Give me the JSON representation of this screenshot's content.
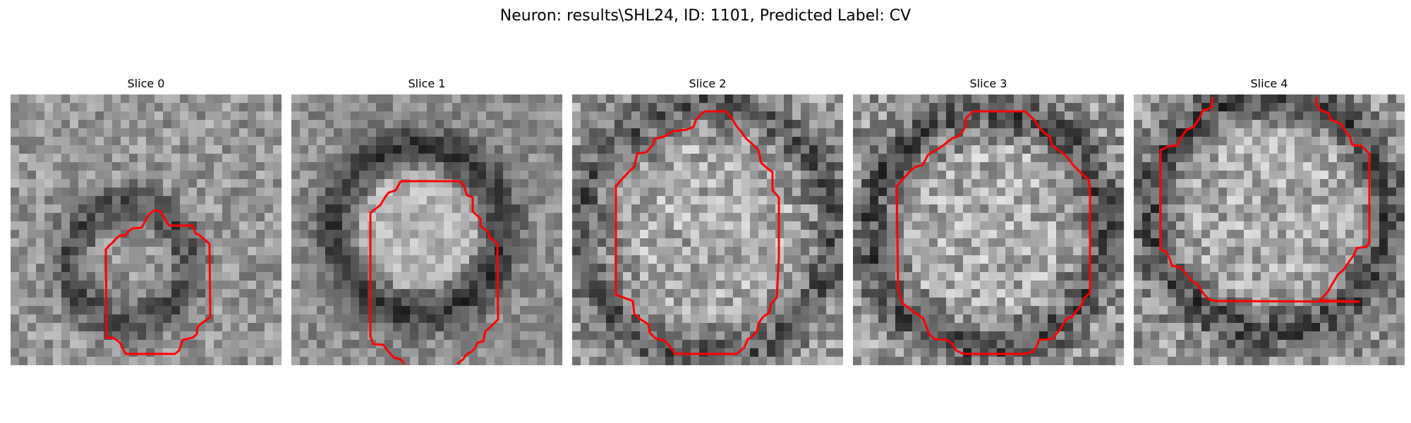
{
  "figure": {
    "title": "Neuron: results\\SHL24, ID: 1101, Predicted Label: CV",
    "contour_color": "#ff0000"
  },
  "slices": [
    {
      "label": "Slice 0"
    },
    {
      "label": "Slice 1"
    },
    {
      "label": "Slice 2"
    },
    {
      "label": "Slice 3"
    },
    {
      "label": "Slice 4"
    }
  ]
}
